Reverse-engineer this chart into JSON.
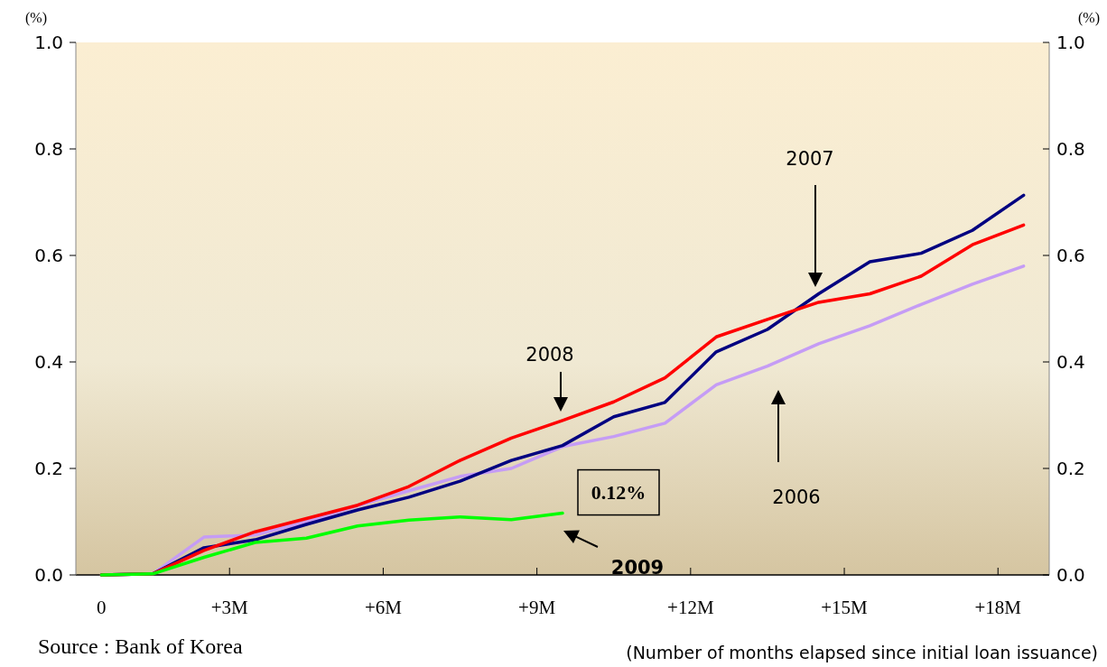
{
  "chart_data": {
    "type": "line",
    "x": [
      0,
      1,
      2,
      3,
      4,
      5,
      6,
      7,
      8,
      9,
      10,
      11,
      12,
      13,
      14,
      15,
      16,
      17,
      18
    ],
    "xlim": [
      -0.5,
      18.5
    ],
    "xticks": [
      {
        "value": 0,
        "label": "0"
      },
      {
        "value": 2.5,
        "label": "+3M"
      },
      {
        "value": 5.5,
        "label": "+6M"
      },
      {
        "value": 8.5,
        "label": "+9M"
      },
      {
        "value": 11.5,
        "label": "+12M"
      },
      {
        "value": 14.5,
        "label": "+15M"
      },
      {
        "value": 17.5,
        "label": "+18M"
      }
    ],
    "ylim": [
      0,
      1
    ],
    "yticks": [
      {
        "value": 0,
        "label": "0.0"
      },
      {
        "value": 0.2,
        "label": "0.2"
      },
      {
        "value": 0.4,
        "label": "0.4"
      },
      {
        "value": 0.6,
        "label": "0.6"
      },
      {
        "value": 0.8,
        "label": "0.8"
      },
      {
        "value": 1,
        "label": "1.0"
      }
    ],
    "y2lim": [
      0,
      1
    ],
    "y2ticks": [
      {
        "value": 0,
        "label": "0.0"
      },
      {
        "value": 0.2,
        "label": "0.2"
      },
      {
        "value": 0.4,
        "label": "0.4"
      },
      {
        "value": 0.6,
        "label": "0.6"
      },
      {
        "value": 0.8,
        "label": "0.8"
      },
      {
        "value": 1,
        "label": "1.0"
      }
    ],
    "ylabel": "(%)",
    "y2label": "(%)",
    "xlabel": "(Number of months elapsed since initial loan issuance)",
    "annotations": [
      "Source : Bank of Korea",
      "2006",
      "2007",
      "2008",
      "2009"
    ],
    "grid": false,
    "legend": false,
    "marker": "none",
    "line_style": "solid",
    "series": [
      {
        "color": "#c59cf5",
        "values": [
          0,
          0.002,
          0.071,
          0.075,
          0.1,
          0.13,
          0.158,
          0.185,
          0.2,
          0.241,
          0.26,
          0.285,
          0.357,
          0.392,
          0.434,
          0.468,
          0.508,
          0.546,
          0.58
        ]
      },
      {
        "color": "#000080",
        "values": [
          0,
          0.002,
          0.051,
          0.066,
          0.095,
          0.122,
          0.146,
          0.176,
          0.215,
          0.243,
          0.297,
          0.324,
          0.419,
          0.461,
          0.528,
          0.588,
          0.604,
          0.647,
          0.713
        ]
      },
      {
        "color": "#ff0000",
        "values": [
          0,
          0.002,
          0.046,
          0.081,
          0.106,
          0.131,
          0.166,
          0.215,
          0.257,
          0.29,
          0.325,
          0.37,
          0.447,
          0.48,
          0.512,
          0.528,
          0.561,
          0.62,
          0.657
        ]
      },
      {
        "color": "#00ff00",
        "x": [
          0,
          1,
          2,
          3,
          4,
          5,
          6,
          7,
          8,
          9
        ],
        "values": [
          0,
          0.002,
          0.033,
          0.061,
          0.069,
          0.092,
          0.103,
          0.109,
          0.104,
          0.116
        ],
        "value_labels": [
          null,
          null,
          null,
          null,
          null,
          null,
          null,
          null,
          null,
          "0.12%"
        ]
      }
    ]
  }
}
